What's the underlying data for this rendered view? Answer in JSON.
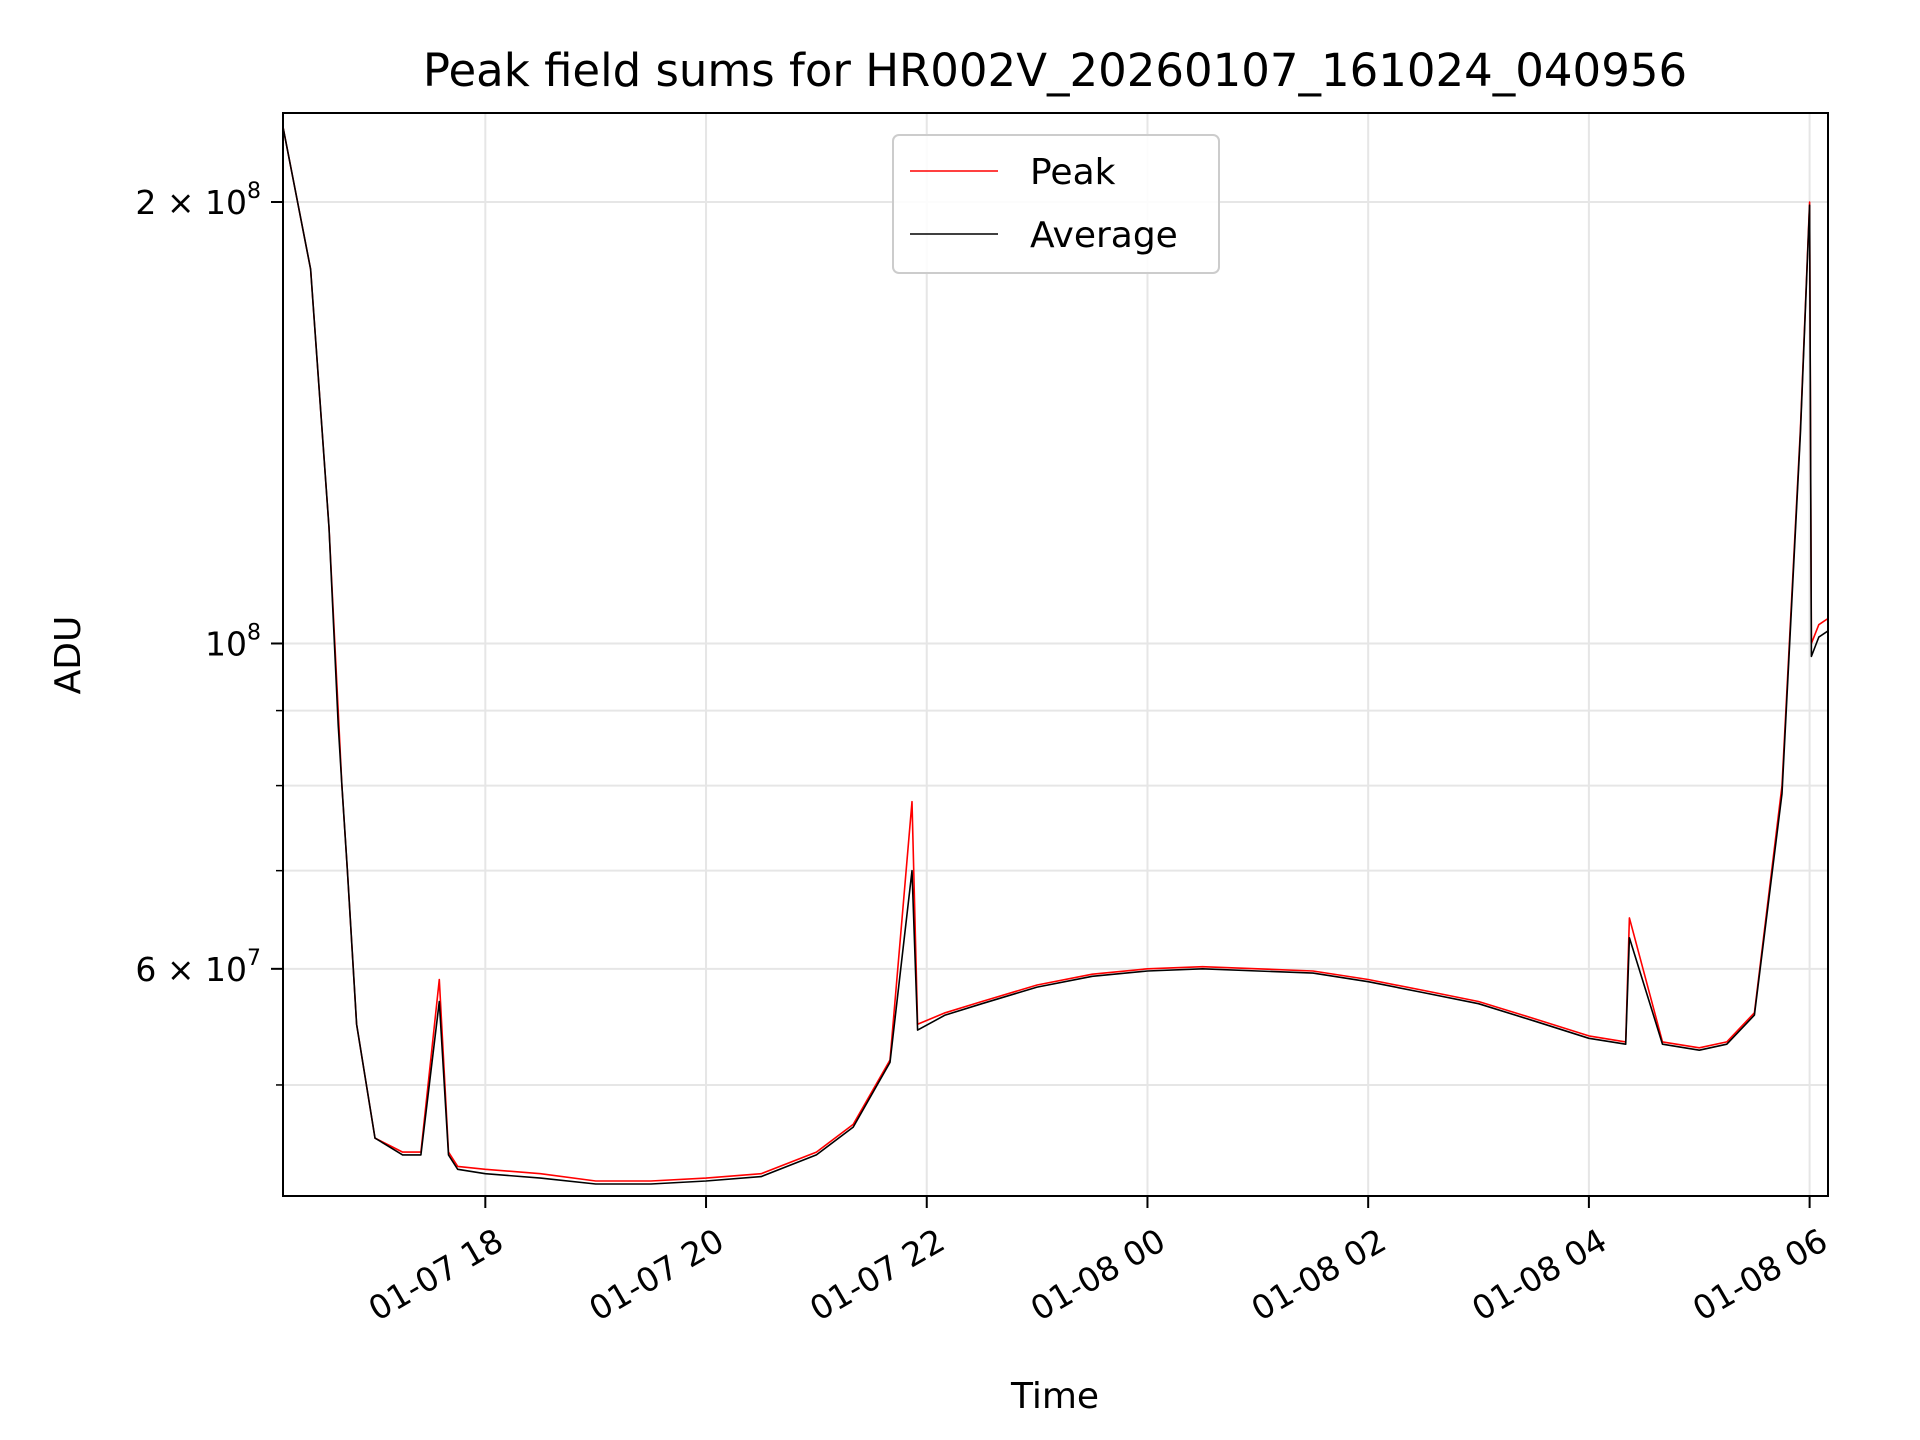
{
  "chart_data": {
    "type": "line",
    "title": "Peak field sums for HR002V_20260107_161024_040956",
    "xlabel": "Time",
    "ylabel": "ADU",
    "yscale": "log",
    "grid": true,
    "legend_position": "top-center",
    "xlim": [
      "2026-01-07 16:10",
      "2026-01-08 06:10"
    ],
    "ylim": [
      42000000,
      230000000
    ],
    "x_ticks": [
      "01-07 18",
      "01-07 20",
      "01-07 22",
      "01-08 00",
      "01-08 02",
      "01-08 04",
      "01-08 06"
    ],
    "y_ticks": [
      {
        "mantissa": "6",
        "exponent": "7",
        "value": 60000000
      },
      {
        "mantissa": "",
        "exponent": "8",
        "value": 100000000
      },
      {
        "mantissa": "2",
        "exponent": "8",
        "value": 200000000
      }
    ],
    "series": [
      {
        "name": "Peak",
        "color": "#ff0000",
        "x": [
          "2026-01-07 16:10",
          "2026-01-07 16:25",
          "2026-01-07 16:35",
          "2026-01-07 16:40",
          "2026-01-07 16:42",
          "2026-01-07 16:45",
          "2026-01-07 16:50",
          "2026-01-07 17:00",
          "2026-01-07 17:15",
          "2026-01-07 17:25",
          "2026-01-07 17:35",
          "2026-01-07 17:40",
          "2026-01-07 17:45",
          "2026-01-07 18:00",
          "2026-01-07 18:30",
          "2026-01-07 19:00",
          "2026-01-07 19:30",
          "2026-01-07 20:00",
          "2026-01-07 20:30",
          "2026-01-07 21:00",
          "2026-01-07 21:20",
          "2026-01-07 21:40",
          "2026-01-07 21:52",
          "2026-01-07 21:55",
          "2026-01-07 22:10",
          "2026-01-07 22:30",
          "2026-01-07 23:00",
          "2026-01-07 23:30",
          "2026-01-08 00:00",
          "2026-01-08 00:30",
          "2026-01-08 01:00",
          "2026-01-08 01:30",
          "2026-01-08 02:00",
          "2026-01-08 02:30",
          "2026-01-08 03:00",
          "2026-01-08 03:30",
          "2026-01-08 04:00",
          "2026-01-08 04:20",
          "2026-01-08 04:22",
          "2026-01-08 04:40",
          "2026-01-08 05:00",
          "2026-01-08 05:15",
          "2026-01-08 05:30",
          "2026-01-08 05:45",
          "2026-01-08 05:55",
          "2026-01-08 06:00",
          "2026-01-08 06:01",
          "2026-01-08 06:05",
          "2026-01-08 06:10"
        ],
        "values": [
          225000000,
          180000000,
          120000000,
          90000000,
          80000000,
          70000000,
          55000000,
          46000000,
          45000000,
          45000000,
          59000000,
          45000000,
          44000000,
          43800000,
          43500000,
          43000000,
          43000000,
          43200000,
          43500000,
          45000000,
          47000000,
          52000000,
          78000000,
          55000000,
          56000000,
          57000000,
          58500000,
          59500000,
          60000000,
          60200000,
          60000000,
          59800000,
          59000000,
          58000000,
          57000000,
          55500000,
          54000000,
          53500000,
          65000000,
          53500000,
          53000000,
          53500000,
          56000000,
          80000000,
          140000000,
          200000000,
          100000000,
          103000000,
          104000000
        ]
      },
      {
        "name": "Average",
        "color": "#000000",
        "x": [
          "2026-01-07 16:10",
          "2026-01-07 16:25",
          "2026-01-07 16:35",
          "2026-01-07 16:40",
          "2026-01-07 16:42",
          "2026-01-07 16:45",
          "2026-01-07 16:50",
          "2026-01-07 17:00",
          "2026-01-07 17:15",
          "2026-01-07 17:25",
          "2026-01-07 17:35",
          "2026-01-07 17:40",
          "2026-01-07 17:45",
          "2026-01-07 18:00",
          "2026-01-07 18:30",
          "2026-01-07 19:00",
          "2026-01-07 19:30",
          "2026-01-07 20:00",
          "2026-01-07 20:30",
          "2026-01-07 21:00",
          "2026-01-07 21:20",
          "2026-01-07 21:40",
          "2026-01-07 21:52",
          "2026-01-07 21:55",
          "2026-01-07 22:10",
          "2026-01-07 22:30",
          "2026-01-07 23:00",
          "2026-01-07 23:30",
          "2026-01-08 00:00",
          "2026-01-08 00:30",
          "2026-01-08 01:00",
          "2026-01-08 01:30",
          "2026-01-08 02:00",
          "2026-01-08 02:30",
          "2026-01-08 03:00",
          "2026-01-08 03:30",
          "2026-01-08 04:00",
          "2026-01-08 04:20",
          "2026-01-08 04:22",
          "2026-01-08 04:40",
          "2026-01-08 05:00",
          "2026-01-08 05:15",
          "2026-01-08 05:30",
          "2026-01-08 05:45",
          "2026-01-08 05:55",
          "2026-01-08 06:00",
          "2026-01-08 06:01",
          "2026-01-08 06:05",
          "2026-01-08 06:10"
        ],
        "values": [
          225000000,
          180000000,
          120000000,
          88000000,
          80000000,
          70000000,
          55000000,
          46000000,
          44800000,
          44800000,
          57000000,
          44800000,
          43800000,
          43500000,
          43200000,
          42800000,
          42800000,
          43000000,
          43300000,
          44800000,
          46800000,
          51800000,
          70000000,
          54500000,
          55800000,
          56800000,
          58300000,
          59300000,
          59800000,
          60000000,
          59800000,
          59600000,
          58800000,
          57800000,
          56800000,
          55300000,
          53800000,
          53300000,
          63000000,
          53300000,
          52800000,
          53300000,
          55800000,
          79000000,
          139000000,
          199000000,
          98000000,
          101000000,
          102000000
        ]
      }
    ]
  }
}
